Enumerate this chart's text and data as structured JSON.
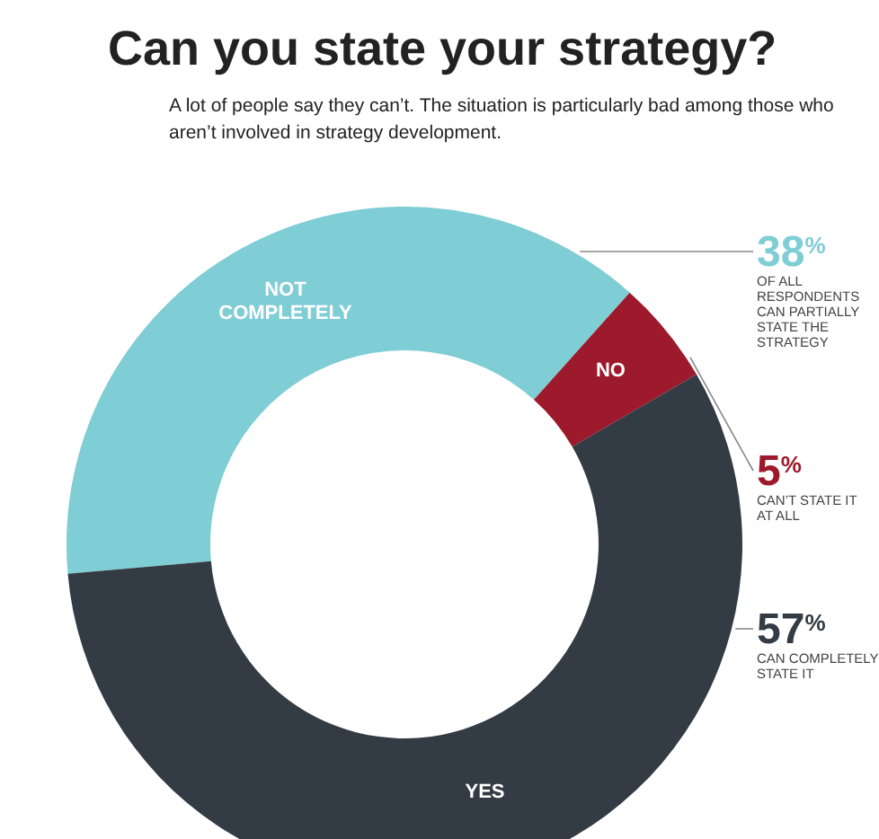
{
  "chart_data": {
    "type": "donut",
    "title": "Can you state your strategy?",
    "subtitle": "A lot of people say they can’t. The situation is particularly bad among those who aren’t involved in strategy development.",
    "categories": [
      "NOT COMPLETELY",
      "NO",
      "YES"
    ],
    "values": [
      38,
      5,
      57
    ],
    "colors": [
      "#7fcdd5",
      "#9c1a2b",
      "#333b44"
    ],
    "value_labels": [
      "38$^{%}$",
      "5$^{%}$",
      "57$^{%}$"
    ],
    "legend": false,
    "annotations": [
      "OF ALL RESPONDENTS CAN PARTIALLY STATE THE STRATEGY",
      "CAN’T STATE IT AT ALL",
      "CAN COMPLETELY STATE IT"
    ]
  }
}
